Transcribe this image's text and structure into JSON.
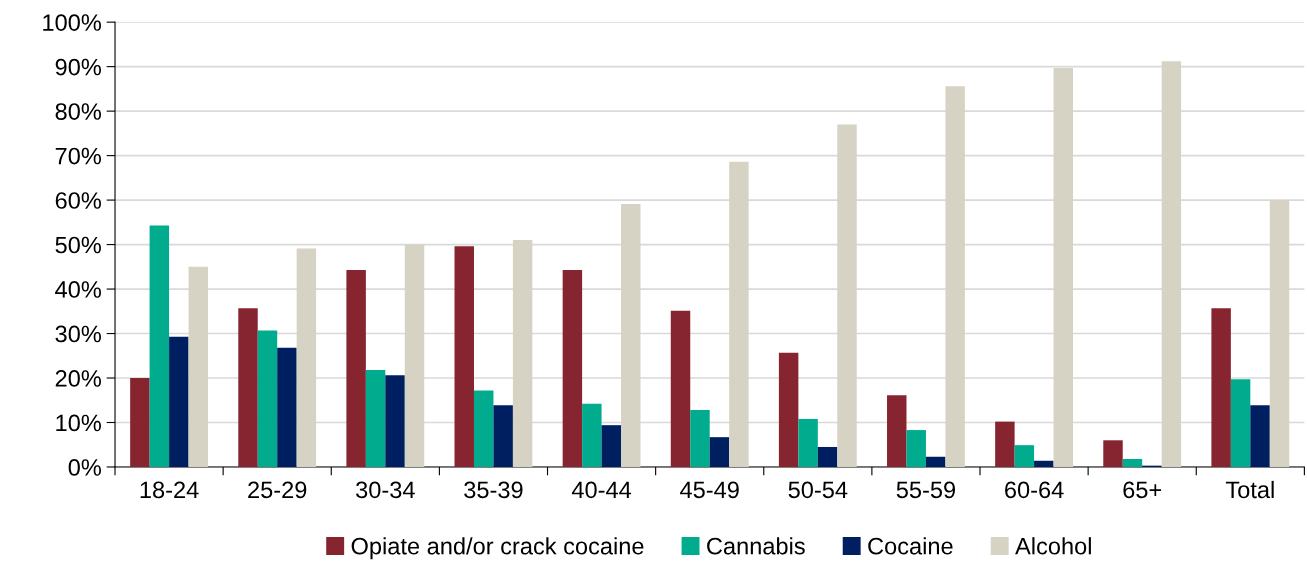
{
  "chart_data": {
    "type": "bar",
    "categories": [
      "18-24",
      "25-29",
      "30-34",
      "35-39",
      "40-44",
      "45-49",
      "50-54",
      "55-59",
      "60-64",
      "65+",
      "Total"
    ],
    "series": [
      {
        "name": "Opiate and/or crack cocaine",
        "color": "#86252f",
        "values": [
          20.0,
          35.7,
          44.3,
          49.6,
          44.3,
          35.1,
          25.7,
          16.1,
          10.2,
          6.0,
          35.7
        ]
      },
      {
        "name": "Cannabis",
        "color": "#00ab8e",
        "values": [
          54.3,
          30.7,
          21.8,
          17.2,
          14.2,
          12.8,
          10.8,
          8.3,
          4.9,
          1.8,
          19.7
        ]
      },
      {
        "name": "Cocaine",
        "color": "#001f60",
        "values": [
          29.3,
          26.8,
          20.6,
          13.9,
          9.4,
          6.7,
          4.5,
          2.3,
          1.4,
          0.3,
          13.9
        ]
      },
      {
        "name": "Alcohol",
        "color": "#d6d3c4",
        "values": [
          45.0,
          49.1,
          50.0,
          51.0,
          59.1,
          68.6,
          77.0,
          85.6,
          89.7,
          91.2,
          60.0
        ]
      }
    ],
    "ylim": [
      0,
      100
    ],
    "yticks": [
      {
        "value": 0,
        "label": "0%"
      },
      {
        "value": 10,
        "label": "10%"
      },
      {
        "value": 20,
        "label": "20%"
      },
      {
        "value": 30,
        "label": "30%"
      },
      {
        "value": 40,
        "label": "40%"
      },
      {
        "value": 50,
        "label": "50%"
      },
      {
        "value": 60,
        "label": "60%"
      },
      {
        "value": 70,
        "label": "70%"
      },
      {
        "value": 80,
        "label": "80%"
      },
      {
        "value": 90,
        "label": "90%"
      },
      {
        "value": 100,
        "label": "100%"
      }
    ],
    "grid": "y",
    "legend": "bottom"
  }
}
